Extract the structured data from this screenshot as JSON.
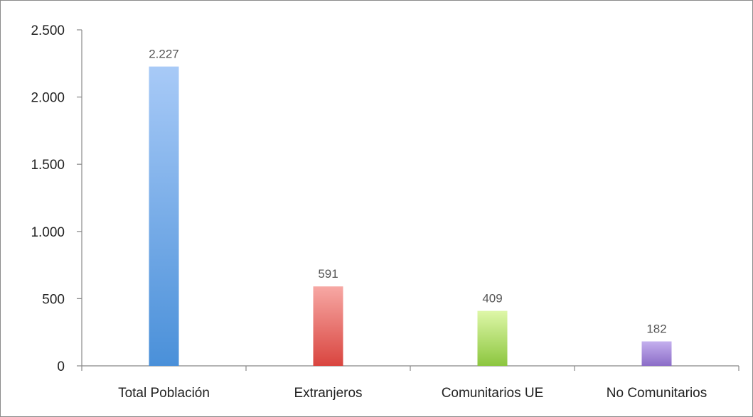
{
  "chart_data": {
    "type": "bar",
    "categories": [
      "Total Población",
      "Extranjeros",
      "Comunitarios UE",
      "No Comunitarios"
    ],
    "values": [
      2227,
      591,
      409,
      182
    ],
    "value_labels": [
      "2.227",
      "591",
      "409",
      "182"
    ],
    "yticks": [
      0,
      500,
      1000,
      1500,
      2000,
      2500
    ],
    "ytick_labels": [
      "0",
      "500",
      "1.000",
      "1.500",
      "2.000",
      "2.500"
    ],
    "ylim": [
      0,
      2500
    ],
    "grid": false,
    "legend": "none",
    "bar_colors": [
      {
        "top": "#a8caf7",
        "bottom": "#4a90d9"
      },
      {
        "top": "#f7a8a4",
        "bottom": "#d9453f"
      },
      {
        "top": "#def7a8",
        "bottom": "#8cc63f"
      },
      {
        "top": "#c4b0ee",
        "bottom": "#8b6cc7"
      }
    ],
    "axis_color": "#888888"
  }
}
